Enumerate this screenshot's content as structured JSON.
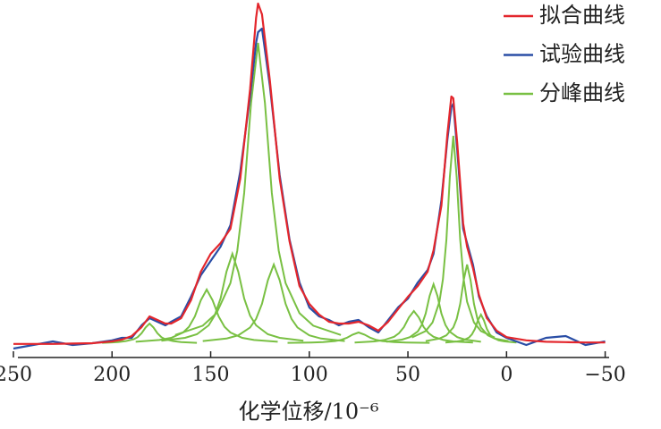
{
  "chart_data": {
    "type": "line",
    "x_label": "化学位移/10⁻⁶",
    "xlim": [
      250,
      -52
    ],
    "xticks": [
      250,
      200,
      150,
      100,
      50,
      0,
      {
        "value": -50,
        "label": "−50"
      }
    ],
    "ylim": [
      0,
      100
    ],
    "legend": "upper right",
    "x": [
      250,
      240,
      230,
      220,
      210,
      200,
      195,
      190,
      185,
      181,
      177,
      173,
      170,
      165,
      160,
      155,
      150,
      145,
      140,
      135,
      130,
      127,
      126,
      124,
      120,
      115,
      110,
      105,
      100,
      95,
      90,
      85,
      80,
      75,
      70,
      65,
      60,
      55,
      50,
      45,
      40,
      37,
      33,
      30,
      28,
      27,
      25,
      22,
      20,
      17,
      14,
      10,
      5,
      0,
      -10,
      -20,
      -30,
      -40,
      -50
    ],
    "series": [
      {
        "name": "拟合曲线",
        "color": "#e3262c",
        "values": [
          3.8,
          3.8,
          3.8,
          3.9,
          4,
          4.5,
          5,
          6,
          8.5,
          11.5,
          10.5,
          9.5,
          9.5,
          11,
          16,
          24,
          29,
          32,
          36,
          50,
          75,
          95,
          99,
          96,
          77.5,
          50,
          32.5,
          20,
          15,
          12,
          10,
          9.5,
          9.5,
          10,
          9,
          7.5,
          10,
          13.5,
          17,
          20,
          24,
          30,
          42.5,
          62.5,
          73,
          72.5,
          60,
          37.5,
          31,
          25,
          17.5,
          11,
          7.5,
          5.7,
          4.8,
          4.4,
          4.3,
          4.2,
          4.2
        ]
      },
      {
        "name": "试验曲线",
        "color": "#2a4ea6",
        "values": [
          2.5,
          3.5,
          4.5,
          3.5,
          4,
          4.8,
          5.5,
          5.5,
          9,
          11,
          10,
          9,
          10,
          11.5,
          17,
          23,
          27,
          31,
          37,
          52,
          73,
          88,
          91,
          92,
          76,
          51,
          33,
          21,
          14,
          11.5,
          10.5,
          9,
          10,
          10.5,
          8.5,
          7,
          10.5,
          14,
          16.5,
          21,
          24.5,
          29,
          44,
          61,
          70,
          71,
          58,
          36,
          32,
          26,
          17,
          11.5,
          7,
          5.5,
          3.5,
          5.5,
          6,
          3.5,
          4.5
        ]
      },
      {
        "name": "分峰曲线",
        "color": "#79c043",
        "components": [
          {
            "x": [
              157,
              165,
              169,
              173,
              175,
              177,
              179,
              181,
              183,
              185,
              187,
              189,
              193,
              197,
              205
            ],
            "values": [
              4.1,
              4.3,
              4.6,
              5.1,
              5.7,
              6.8,
              8.4,
              9.5,
              8.4,
              6.8,
              5.7,
              5.1,
              4.6,
              4.3,
              4.1
            ]
          },
          {
            "x": [
              116,
              128,
              134,
              140,
              143,
              146,
              149,
              152,
              155,
              158,
              161,
              164,
              170,
              176,
              188
            ],
            "values": [
              4.4,
              4.9,
              5.5,
              7,
              8.6,
              11.5,
              16,
              19,
              16,
              11.5,
              8.6,
              7,
              5.5,
              4.9,
              4.4
            ]
          },
          {
            "x": [
              103,
              115,
              121,
              127,
              130,
              133,
              136,
              139,
              142,
              145,
              148,
              151,
              157,
              163,
              175
            ],
            "values": [
              4.7,
              5.5,
              6.5,
              9,
              11.7,
              16.5,
              24,
              29,
              24,
              16.5,
              11.7,
              9,
              6.5,
              5.5,
              4.7
            ]
          },
          {
            "x": [
              84,
              98,
              105,
              112,
              115.5,
              119,
              122.5,
              126,
              129.5,
              133,
              136.5,
              140,
              147,
              154,
              168
            ],
            "values": [
              6.3,
              8.9,
              12.4,
              20.8,
              29.9,
              46,
              71.2,
              88,
              71.2,
              46,
              29.9,
              20.8,
              12.4,
              8.9,
              6.3
            ]
          },
          {
            "x": [
              82,
              94,
              100,
              106,
              109,
              112,
              115,
              118,
              121,
              124,
              127,
              130,
              136,
              142,
              154
            ],
            "values": [
              4.6,
              5.3,
              6.2,
              8.4,
              10.8,
              15,
              21.6,
              26,
              21.6,
              15,
              10.8,
              8.4,
              6.2,
              5.3,
              4.6
            ]
          },
          {
            "x": [
              39,
              51,
              57,
              63,
              66,
              69,
              72,
              75,
              78,
              81,
              84,
              87,
              93,
              99,
              111
            ],
            "values": [
              4.1,
              4.2,
              4.3,
              4.6,
              4.9,
              5.5,
              6.4,
              7,
              6.4,
              5.5,
              4.9,
              4.6,
              4.3,
              4.2,
              4.1
            ]
          },
          {
            "x": [
              17,
              27,
              32,
              37,
              39.5,
              42,
              44.5,
              47,
              49.5,
              52,
              54.5,
              57,
              62,
              67,
              77
            ],
            "values": [
              4.2,
              4.5,
              4.9,
              5.8,
              6.8,
              8.5,
              11.2,
              13,
              11.2,
              8.5,
              6.8,
              5.8,
              4.9,
              4.5,
              4.2
            ]
          },
          {
            "x": [
              13,
              21,
              25,
              29,
              31,
              33,
              35,
              37,
              39,
              41,
              43,
              45,
              49,
              53,
              61
            ],
            "values": [
              4.4,
              5,
              5.7,
              7.3,
              9.1,
              12.3,
              17.2,
              20.5,
              17.2,
              12.3,
              9.1,
              7.3,
              5.7,
              5,
              4.4
            ]
          },
          {
            "x": [
              6,
              13,
              16.5,
              20,
              21.75,
              23.5,
              25.25,
              27,
              28.75,
              30.5,
              32.25,
              34,
              37.5,
              41,
              48
            ],
            "values": [
              5.6,
              7.4,
              9.8,
              15.6,
              21.9,
              33,
              50.4,
              62,
              50.4,
              33,
              21.9,
              15.6,
              9.8,
              7.4,
              5.6
            ]
          },
          {
            "x": [
              -1,
              6,
              9.5,
              13,
              14.75,
              16.5,
              18.25,
              20,
              21.75,
              23.5,
              25.25,
              27,
              30.5,
              34,
              41
            ],
            "values": [
              4.6,
              5.3,
              6.2,
              8.4,
              10.8,
              15,
              21.6,
              26,
              21.6,
              15,
              10.8,
              8.4,
              6.2,
              5.3,
              4.6
            ]
          },
          {
            "x": [
              -5,
              1,
              4,
              7,
              8.5,
              10,
              11.5,
              13,
              14.5,
              16,
              17.5,
              19,
              22,
              25,
              31
            ],
            "values": [
              4.2,
              4.5,
              4.8,
              5.6,
              6.5,
              8,
              10.4,
              12,
              10.4,
              8,
              6.5,
              5.6,
              4.8,
              4.5,
              4.2
            ]
          }
        ]
      }
    ]
  }
}
